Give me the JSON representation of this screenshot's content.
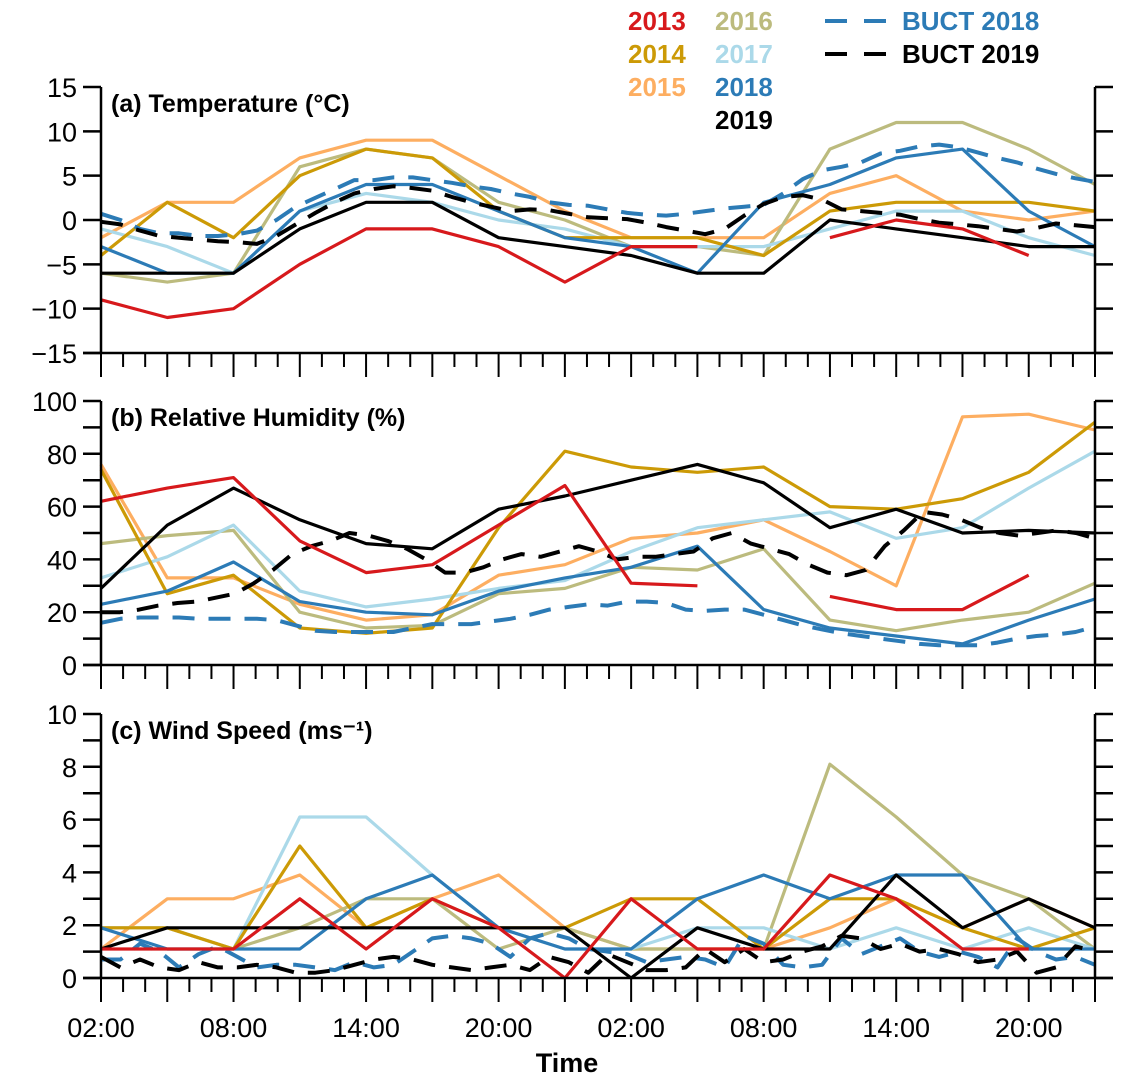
{
  "chart_data": {
    "type": "line",
    "xlabel": "Time",
    "x_tick_labels": [
      "02:00",
      "08:00",
      "14:00",
      "20:00",
      "02:00",
      "08:00",
      "14:00",
      "20:00"
    ],
    "x_hours": [
      2,
      5,
      8,
      11,
      14,
      17,
      20,
      23,
      26,
      29,
      32,
      35,
      38,
      41,
      44,
      47
    ],
    "x_range_hours": [
      2,
      47
    ],
    "legend": {
      "placement": "top-right",
      "entries": [
        {
          "label": "2013",
          "key": "y2013"
        },
        {
          "label": "2014",
          "key": "y2014"
        },
        {
          "label": "2015",
          "key": "y2015"
        },
        {
          "label": "2016",
          "key": "y2016"
        },
        {
          "label": "2017",
          "key": "y2017"
        },
        {
          "label": "2018",
          "key": "y2018"
        },
        {
          "label": "2019",
          "key": "y2019"
        },
        {
          "label": "BUCT 2018",
          "key": "buct2018"
        },
        {
          "label": "BUCT 2019",
          "key": "buct2019"
        }
      ]
    },
    "colors": {
      "y2013": "#d7191c",
      "y2014": "#cc9a06",
      "y2015": "#fdae61",
      "y2016": "#bcbb7e",
      "y2017": "#abd9e9",
      "y2018": "#2c7bb6",
      "y2019": "#000000",
      "buct2018": "#2c7bb6",
      "buct2019": "#000000"
    },
    "panels": [
      {
        "title": "(a) Temperature (°C)",
        "ylim": [
          -15,
          15
        ],
        "yticks": [
          -15,
          -10,
          -5,
          0,
          5,
          10,
          15
        ],
        "ytick_labels": [
          "−15",
          "−10",
          "−5",
          "0",
          "5",
          "10",
          "15"
        ],
        "series": {
          "y2013": [
            -9,
            -11,
            -10,
            -5,
            -1,
            -1,
            -3,
            -7,
            -3,
            -3,
            null,
            -2,
            0,
            -1,
            -4,
            null
          ],
          "y2014": [
            -4,
            2,
            -2,
            5,
            8,
            7,
            1,
            -2,
            -2,
            -2,
            -4,
            1,
            2,
            2,
            2,
            1
          ],
          "y2015": [
            -2,
            2,
            2,
            7,
            9,
            9,
            5,
            1,
            -2,
            -2,
            -2,
            3,
            5,
            1,
            0,
            1
          ],
          "y2016": [
            -6,
            -7,
            -6,
            6,
            8,
            7,
            2,
            0,
            -3,
            -3,
            -4,
            8,
            11,
            11,
            8,
            4
          ],
          "y2017": [
            -1,
            -3,
            -6,
            1,
            3,
            2,
            0,
            -1,
            -3,
            -3,
            -3,
            -1,
            1,
            1,
            -2,
            -4
          ],
          "y2018": [
            -3,
            -6,
            -6,
            1,
            4,
            4,
            1,
            -2,
            -3,
            -6,
            2,
            4,
            7,
            8,
            1,
            -3
          ],
          "y2019": [
            -6,
            -6,
            -6,
            -1,
            2,
            2,
            -2,
            -3,
            -4,
            -6,
            -6,
            0,
            -1,
            -2,
            -3,
            -3
          ],
          "buct2018": [
            0.7,
            0,
            -1,
            -1.5,
            -1.5,
            -1.8,
            -1.8,
            -1.6,
            -1.2,
            0,
            1.5,
            2.5,
            3.5,
            4.5,
            4.5,
            4.8,
            4.8,
            4.5,
            4.2,
            3.8,
            3.5,
            3,
            2.6,
            2,
            1.7,
            1.6,
            1.2,
            0.8,
            0.6,
            0.5,
            0.7,
            1,
            1.3,
            1.5,
            1.7,
            3,
            4.6,
            5.6,
            6,
            6.5,
            7.5,
            7.8,
            8.3,
            8.5,
            8.2,
            7.6,
            7,
            6.5,
            5.8,
            5.2,
            4.7,
            4.3
          ],
          "buct2019": [
            -0.2,
            -0.5,
            -1.2,
            -1.8,
            -2,
            -2.2,
            -2.4,
            -2.5,
            -2.7,
            -1.8,
            -0.5,
            0.8,
            2,
            3,
            3.5,
            3.8,
            3.6,
            3.3,
            2.6,
            2,
            1.5,
            1,
            1.2,
            1.1,
            0.7,
            0.3,
            0.2,
            0.1,
            -0.3,
            -0.8,
            -1.2,
            -1.6,
            -1,
            0.5,
            1.8,
            2.6,
            2.8,
            2.3,
            1.2,
            1,
            0.8,
            0.6,
            0.1,
            -0.3,
            -0.5,
            -0.7,
            -1,
            -1.3,
            -0.9,
            -0.4,
            -0.6,
            -0.8
          ]
        }
      },
      {
        "title": "(b) Relative Humidity (%)",
        "ylim": [
          0,
          100
        ],
        "yticks": [
          0,
          20,
          40,
          60,
          80,
          100
        ],
        "ytick_labels": [
          "0",
          "20",
          "40",
          "60",
          "80",
          "100"
        ],
        "series": {
          "y2013": [
            62,
            67,
            71,
            47,
            35,
            38,
            53,
            68,
            31,
            30,
            null,
            26,
            21,
            21,
            34,
            null
          ],
          "y2014": [
            74,
            27,
            34,
            14,
            12,
            14,
            52,
            81,
            75,
            73,
            75,
            60,
            59,
            63,
            73,
            92
          ],
          "y2015": [
            76,
            33,
            33,
            23,
            17,
            19,
            34,
            38,
            48,
            50,
            55,
            43,
            30,
            94,
            95,
            89
          ],
          "y2016": [
            46,
            49,
            51,
            20,
            14,
            15,
            27,
            29,
            37,
            36,
            44,
            17,
            13,
            17,
            20,
            31
          ],
          "y2017": [
            33,
            41,
            53,
            28,
            22,
            25,
            29,
            32,
            43,
            52,
            55,
            58,
            48,
            52,
            67,
            81
          ],
          "y2018": [
            23,
            28,
            39,
            24,
            20,
            19,
            28,
            33,
            37,
            45,
            21,
            14,
            11,
            8,
            17,
            25
          ],
          "y2019": [
            29,
            53,
            67,
            55,
            46,
            44,
            59,
            64,
            70,
            76,
            69,
            52,
            59,
            50,
            51,
            50
          ],
          "buct2018": [
            16,
            17.5,
            18,
            18,
            18,
            17.5,
            17.5,
            17.5,
            17.5,
            17,
            15,
            13,
            12.5,
            12.5,
            12.5,
            12.5,
            14,
            15.5,
            15.5,
            15.5,
            16.5,
            17.5,
            19,
            21,
            22,
            23,
            22.5,
            24,
            24,
            23.5,
            21,
            20.5,
            21,
            21,
            19,
            17,
            15,
            13.5,
            12,
            11,
            10,
            9,
            8,
            7.5,
            7.5,
            7.5,
            8.5,
            10,
            11,
            11.5,
            12.5,
            14.5
          ],
          "buct2019": [
            20,
            20,
            21,
            22.5,
            23.5,
            24,
            25.5,
            27,
            31,
            36,
            42,
            45,
            47,
            50,
            49,
            47,
            44,
            40,
            35,
            35,
            37,
            40,
            42,
            41,
            43,
            45,
            43,
            40,
            41,
            41,
            42,
            43,
            48,
            50,
            46,
            44,
            42,
            38,
            35,
            34,
            36,
            45,
            51,
            58,
            57,
            55,
            52,
            50,
            49,
            50,
            51,
            50,
            48
          ]
        }
      },
      {
        "title": "(c) Wind Speed (ms⁻¹)",
        "ylim": [
          0,
          10
        ],
        "yticks": [
          0,
          2,
          4,
          6,
          8,
          10
        ],
        "ytick_labels": [
          "0",
          "2",
          "4",
          "6",
          "8",
          "10"
        ],
        "series": {
          "y2013": [
            1.1,
            1.1,
            1.1,
            3,
            1.1,
            3,
            1.9,
            0,
            3,
            1.1,
            1.1,
            3.9,
            3,
            1.1,
            1.1,
            null
          ],
          "y2014": [
            1.9,
            1.9,
            1.1,
            5,
            1.9,
            3,
            1.9,
            1.9,
            3,
            3,
            1.1,
            3,
            3,
            1.9,
            1.1,
            1.9
          ],
          "y2015": [
            1.1,
            3,
            3,
            3.9,
            1.9,
            3,
            3.9,
            1.9,
            1.1,
            1.1,
            1.1,
            1.9,
            3,
            1.9,
            3,
            1.9
          ],
          "y2016": [
            1.9,
            1.9,
            1.1,
            1.9,
            3,
            3,
            1.1,
            1.9,
            1.1,
            1.1,
            1.1,
            8.1,
            6.1,
            3.9,
            3,
            1.1
          ],
          "y2017": [
            1.9,
            1.9,
            1.1,
            6.1,
            6.1,
            3.9,
            1.9,
            1.1,
            1.1,
            1.9,
            1.9,
            1.1,
            1.9,
            1.1,
            1.9,
            1.1
          ],
          "y2018": [
            1.9,
            1.1,
            1.1,
            1.1,
            3,
            3.9,
            1.9,
            1.1,
            1.1,
            3,
            3.9,
            3,
            3.9,
            3.9,
            1.1,
            1.1
          ],
          "y2019": [
            1.1,
            1.9,
            1.9,
            1.9,
            1.9,
            1.9,
            1.9,
            1.9,
            0,
            1.9,
            1.1,
            1.1,
            3.9,
            1.9,
            3,
            1.9
          ],
          "buct2018": [
            0.7,
            0.7,
            1.3,
            1.0,
            0.4,
            0.9,
            1.2,
            0.8,
            0.4,
            0.5,
            0.5,
            0.4,
            0.3,
            0.6,
            0.4,
            0.5,
            1.0,
            1.5,
            1.6,
            1.5,
            1.3,
            0.8,
            1.5,
            1.7,
            1.5,
            1.1,
            1.0,
            0.9,
            0.6,
            0.7,
            0.8,
            0.7,
            0.4,
            1.6,
            1.3,
            0.5,
            0.4,
            0.5,
            1.5,
            0.9,
            1.2,
            1.5,
            1.0,
            0.8,
            1.0,
            0.8,
            0.4,
            1.5,
            1.0,
            0.7,
            0.8,
            0.5
          ],
          "buct2019": [
            0.8,
            0.4,
            0.7,
            0.4,
            0.3,
            0.6,
            0.4,
            0.4,
            0.5,
            0.4,
            0.2,
            0.2,
            0.3,
            0.5,
            0.7,
            0.8,
            0.7,
            0.5,
            0.4,
            0.3,
            0.4,
            0.5,
            0.3,
            0.8,
            0.6,
            0.2,
            0.9,
            0.6,
            0.3,
            0.3,
            0.4,
            1.1,
            0.6,
            1.1,
            0.6,
            0.7,
            1.0,
            1.2,
            1.6,
            1.5,
            1.1,
            1.3,
            1.0,
            1.1,
            0.9,
            0.6,
            0.7,
            1.0,
            0.2,
            0.4,
            1.2,
            1.0
          ]
        }
      }
    ]
  }
}
